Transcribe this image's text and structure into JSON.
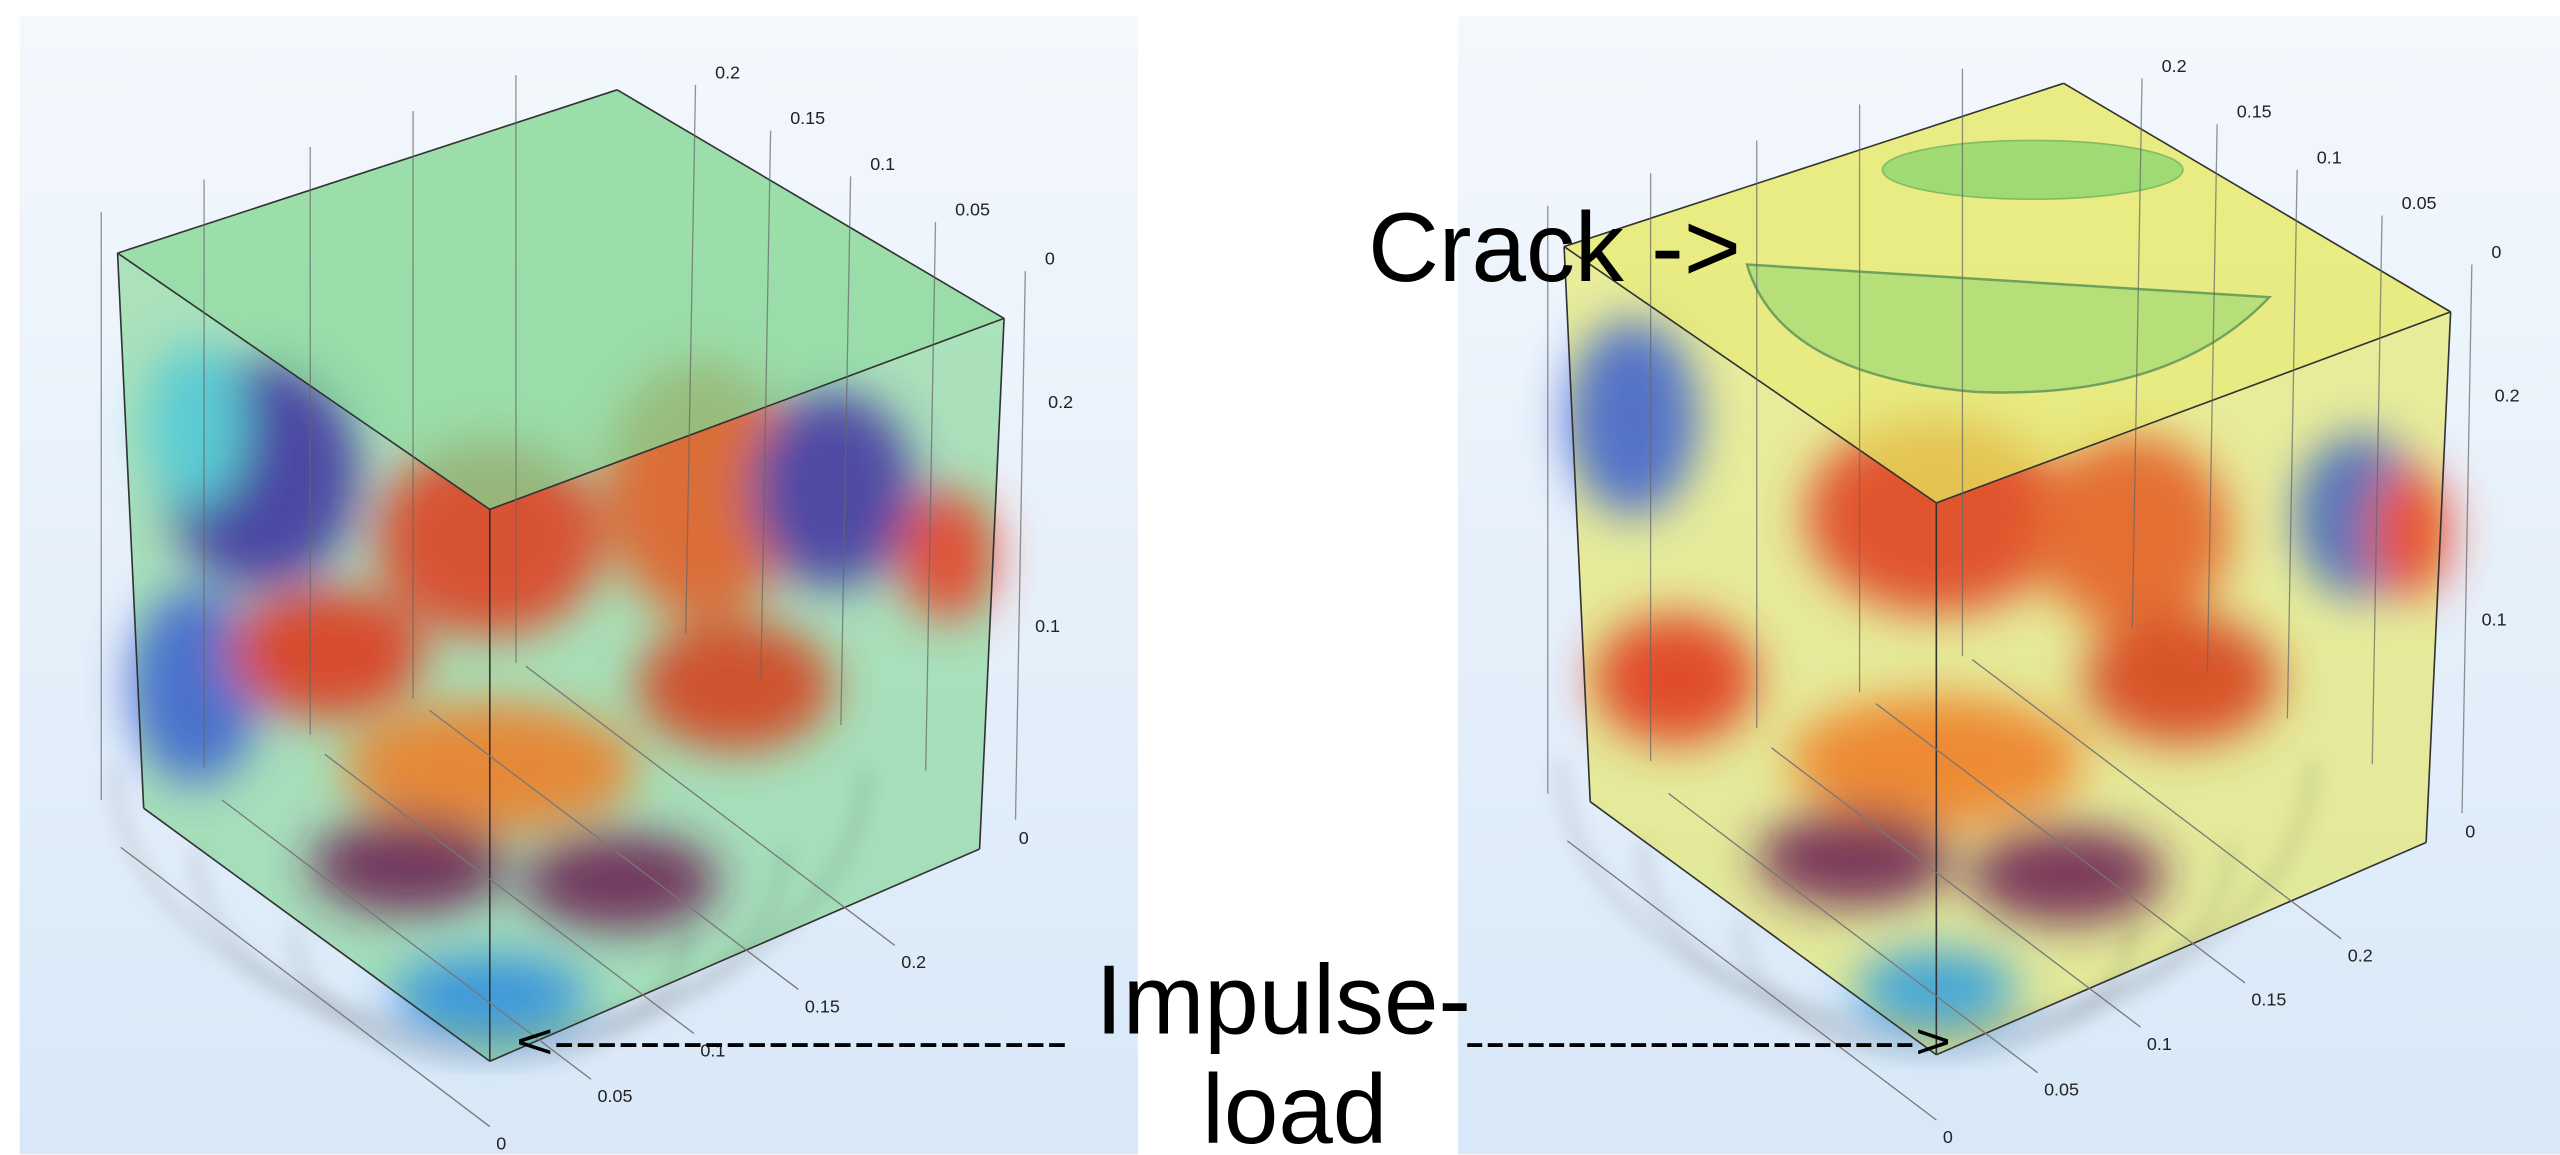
{
  "panels": [
    {
      "top_axis": [
        "0.2",
        "0.15",
        "0.1",
        "0.05",
        "0"
      ],
      "side_axis": [
        "0.2",
        "0.1",
        "0"
      ],
      "bottom_axis": [
        "0",
        "0.05",
        "0.1",
        "0.15",
        "0.2"
      ]
    },
    {
      "top_axis": [
        "0.2",
        "0.15",
        "0.1",
        "0.05",
        "0"
      ],
      "side_axis": [
        "0.2",
        "0.1",
        "0"
      ],
      "bottom_axis": [
        "0",
        "0.05",
        "0.1",
        "0.15",
        "0.2"
      ]
    }
  ],
  "annotations": {
    "crack": "Crack ->",
    "impulse": "Impulse-",
    "load": "load",
    "left_arrow": "<------------------------",
    "right_arrow": "---------------------->"
  }
}
